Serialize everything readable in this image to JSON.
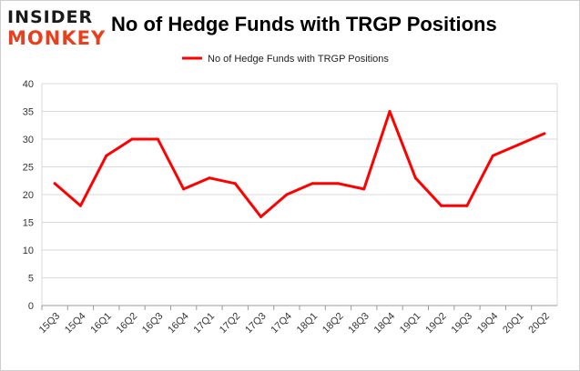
{
  "logo": {
    "line1": "INSIDER",
    "line2": "MONKEY"
  },
  "chart_data": {
    "type": "line",
    "title": "No of Hedge Funds with TRGP Positions",
    "xlabel": "",
    "ylabel": "",
    "ylim": [
      0,
      40
    ],
    "yticks": [
      0,
      5,
      10,
      15,
      20,
      25,
      30,
      35,
      40
    ],
    "grid": true,
    "legend_position": "top-center",
    "categories": [
      "15Q3",
      "15Q4",
      "16Q1",
      "16Q2",
      "16Q3",
      "16Q4",
      "17Q1",
      "17Q2",
      "17Q3",
      "17Q4",
      "18Q1",
      "18Q2",
      "18Q3",
      "18Q4",
      "19Q1",
      "19Q2",
      "19Q3",
      "19Q4",
      "20Q1",
      "20Q2"
    ],
    "series": [
      {
        "name": "No of Hedge Funds with TRGP Positions",
        "color": "#ff0000",
        "values": [
          22,
          18,
          27,
          30,
          30,
          21,
          23,
          22,
          16,
          20,
          22,
          22,
          21,
          35,
          23,
          18,
          18,
          27,
          29,
          31
        ]
      }
    ]
  }
}
